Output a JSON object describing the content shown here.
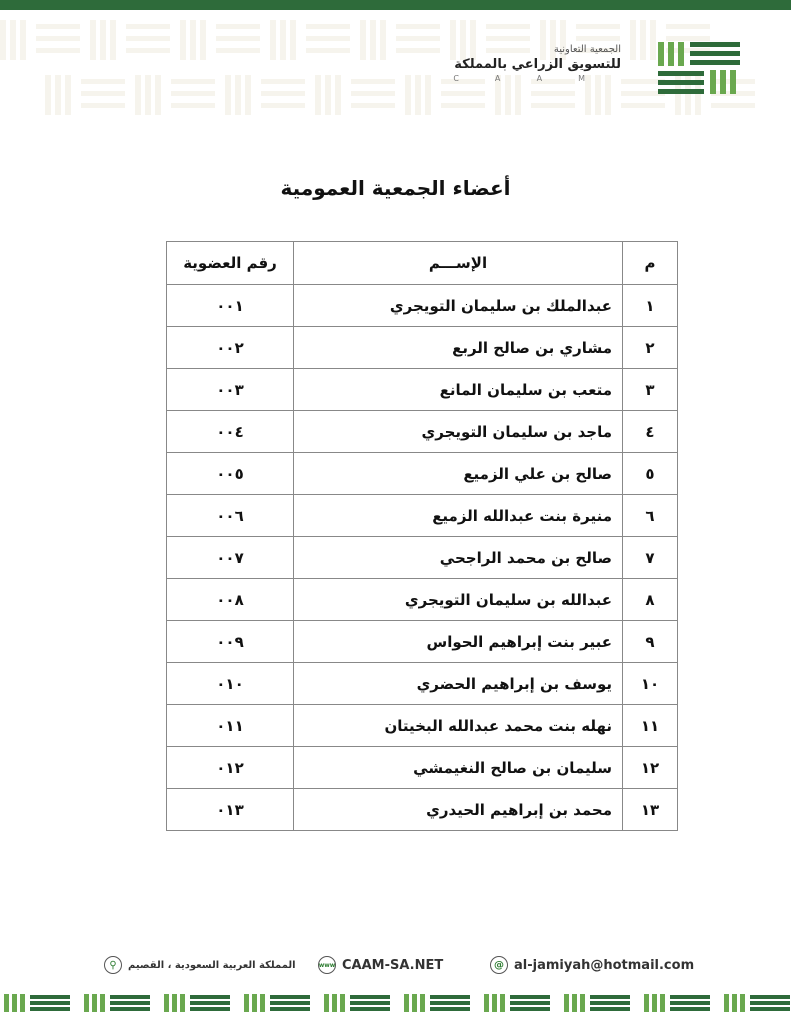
{
  "header": {
    "org_line1": "الجمعية التعاونية",
    "org_line2": "للتسويق الزراعي بالمملكة",
    "org_abbr": "CAAM",
    "colors": {
      "dark_green": "#2e6b3a",
      "light_green": "#6aa84f",
      "pattern": "#e6e2cc"
    }
  },
  "title": "أعضاء الجمعية العمومية",
  "table": {
    "headers": {
      "index": "م",
      "name": "الإســـم",
      "membership": "رقم العضوية"
    },
    "rows": [
      {
        "index": "١",
        "name": "عبدالملك بن سليمان التويجري",
        "membership": "٠٠١"
      },
      {
        "index": "٢",
        "name": "مشاري بن صالح الربع",
        "membership": "٠٠٢"
      },
      {
        "index": "٣",
        "name": "متعب بن سليمان المانع",
        "membership": "٠٠٣"
      },
      {
        "index": "٤",
        "name": "ماجد بن سليمان التويجري",
        "membership": "٠٠٤"
      },
      {
        "index": "٥",
        "name": "صالح بن علي الزميع",
        "membership": "٠٠٥"
      },
      {
        "index": "٦",
        "name": "منيرة بنت عبدالله الزميع",
        "membership": "٠٠٦"
      },
      {
        "index": "٧",
        "name": "صالح بن محمد الراجحي",
        "membership": "٠٠٧"
      },
      {
        "index": "٨",
        "name": "عبدالله بن سليمان التويجري",
        "membership": "٠٠٨"
      },
      {
        "index": "٩",
        "name": "عبير بنت إبراهيم الحواس",
        "membership": "٠٠٩"
      },
      {
        "index": "١٠",
        "name": "يوسف بن إبراهيم الحضري",
        "membership": "٠١٠"
      },
      {
        "index": "١١",
        "name": "نهله بنت محمد عبدالله البخيتان",
        "membership": "٠١١"
      },
      {
        "index": "١٢",
        "name": "سليمان بن صالح النغيمشي",
        "membership": "٠١٢"
      },
      {
        "index": "١٣",
        "name": "محمد بن إبراهيم الحيدري",
        "membership": "٠١٣"
      }
    ]
  },
  "footer": {
    "location": "المملكة العربية السعودية ، القصيم",
    "location_icon": "location-pin-icon",
    "website": "CAAM-SA.NET",
    "website_icon": "www-icon",
    "email": "al-jamiyah@hotmail.com",
    "email_icon": "at-icon"
  }
}
